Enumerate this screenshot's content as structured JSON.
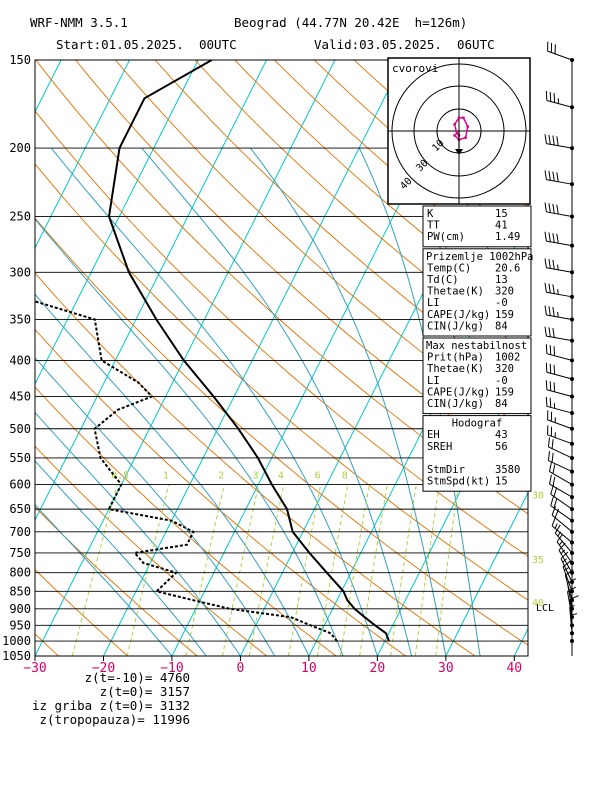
{
  "header": {
    "model": "WRF-NMM 3.5.1",
    "location": "Beograd (44.77N 20.42E  h=126m)",
    "start": "Start:01.05.2025.  00UTC",
    "valid": "Valid:03.05.2025.  06UTC"
  },
  "colors": {
    "axis": "#000000",
    "isotherm": "#00c8c8",
    "dry_adiabat": "#e07000",
    "moist_adiabat": "#33a0c0",
    "mixing_ratio": "#b0d040",
    "xtick": "#d4006a",
    "hodo_trace": "#e0008c"
  },
  "chart_data": {
    "type": "skew-t",
    "xaxis_ticks": [
      -30,
      -20,
      -10,
      0,
      10,
      20,
      30,
      40
    ],
    "xlim": [
      -30,
      42
    ],
    "pressure_ticks": [
      150,
      200,
      250,
      300,
      350,
      400,
      450,
      500,
      550,
      600,
      650,
      700,
      750,
      800,
      850,
      900,
      950,
      1000,
      1050
    ],
    "ylim": [
      1050,
      150
    ],
    "temperature": {
      "p": [
        1000,
        975,
        950,
        925,
        900,
        875,
        850,
        800,
        750,
        700,
        650,
        600,
        550,
        500,
        450,
        400,
        350,
        300,
        250,
        200,
        170,
        150
      ],
      "t": [
        20.6,
        19.6,
        17.4,
        15.3,
        13.2,
        11.5,
        10.3,
        6.5,
        2.5,
        -1.5,
        -4.0,
        -8.0,
        -12.0,
        -17.0,
        -23.0,
        -30.0,
        -37.0,
        -44.5,
        -51.5,
        -55.0,
        -55.0,
        -48.0
      ]
    },
    "dewpoint": {
      "p": [
        1000,
        975,
        950,
        925,
        900,
        875,
        850,
        800,
        775,
        750,
        730,
        700,
        675,
        650,
        600,
        550,
        500,
        470,
        450,
        430,
        400,
        350,
        330,
        300,
        250,
        200,
        170,
        150
      ],
      "td": [
        13.0,
        11.5,
        8.0,
        4.5,
        -5.0,
        -11.0,
        -17.0,
        -15.5,
        -21.0,
        -23.0,
        -16.0,
        -16.0,
        -20.0,
        -30.0,
        -30.0,
        -35.0,
        -38.0,
        -36.0,
        -32.0,
        -35.0,
        -42.0,
        -46.0,
        -56.0,
        -60.0,
        -73.0,
        -83.0,
        -88.0,
        -88.0
      ]
    },
    "isotherm_values": [
      -110,
      -100,
      -90,
      -80,
      -70,
      -60,
      -50,
      -40,
      -30,
      -20,
      -10,
      0,
      10,
      20,
      30,
      40
    ],
    "dry_adiabat_thetas": [
      -30,
      -20,
      -10,
      0,
      10,
      20,
      30,
      40,
      50,
      60,
      70,
      80,
      90,
      100,
      110,
      120,
      130,
      140,
      150,
      160,
      170,
      180
    ],
    "moist_adiabat_start_t": [
      -10,
      -5,
      0,
      5,
      10,
      15,
      20,
      25,
      30,
      35
    ],
    "mixing_ratio_labels": [
      "0.5",
      "1",
      "2",
      "3",
      "4",
      "6",
      "8"
    ],
    "mixing_ratio_values": [
      0.5,
      1,
      2,
      3,
      4,
      6,
      8,
      10,
      12,
      16,
      20,
      24
    ],
    "right_labels": [
      {
        "text": "30",
        "p": 620
      },
      {
        "text": "35",
        "p": 765
      },
      {
        "text": "40",
        "p": 880
      },
      {
        "text": "LCL",
        "p": 895
      }
    ],
    "wind_barbs": {
      "p": [
        150,
        175,
        200,
        225,
        250,
        275,
        300,
        325,
        350,
        375,
        400,
        425,
        450,
        475,
        500,
        525,
        550,
        575,
        600,
        625,
        650,
        675,
        700,
        725,
        750,
        775,
        800,
        825,
        850,
        875,
        900,
        925,
        950,
        975,
        1000
      ],
      "dir": [
        290,
        285,
        280,
        280,
        280,
        280,
        280,
        280,
        280,
        280,
        285,
        285,
        285,
        285,
        290,
        290,
        295,
        295,
        300,
        300,
        305,
        305,
        310,
        310,
        320,
        325,
        330,
        335,
        340,
        345,
        350,
        350,
        355,
        355,
        0
      ],
      "spd": [
        30,
        35,
        40,
        40,
        40,
        40,
        35,
        35,
        35,
        30,
        30,
        30,
        30,
        25,
        25,
        25,
        20,
        20,
        20,
        20,
        20,
        20,
        20,
        15,
        15,
        15,
        15,
        15,
        15,
        10,
        10,
        10,
        10,
        5,
        5
      ]
    },
    "hodograph": {
      "label": "cvorovi",
      "ring_labels": [
        "10",
        "30",
        "40"
      ],
      "u": [
        0,
        -1,
        -2,
        0,
        2,
        4,
        3,
        0,
        -2
      ],
      "v": [
        -2,
        -1,
        3,
        6,
        6,
        2,
        -3,
        -4,
        -2
      ]
    }
  },
  "indices": {
    "block1": [
      {
        "label": "K",
        "value": "15"
      },
      {
        "label": "TT",
        "value": "41"
      },
      {
        "label": "PW(cm)",
        "value": "1.49"
      }
    ],
    "block2_title": "Prizemlje 1002hPa",
    "block2": [
      {
        "label": "Temp(C)",
        "value": "20.6"
      },
      {
        "label": "Td(C)",
        "value": "13"
      },
      {
        "label": "Thetae(K)",
        "value": "320"
      },
      {
        "label": "LI",
        "value": "-0"
      },
      {
        "label": "CAPE(J/kg)",
        "value": "159"
      },
      {
        "label": "CIN(J/kg)",
        "value": "84"
      }
    ],
    "block3_title": "Max nestabilnost",
    "block3": [
      {
        "label": "Prit(hPa)",
        "value": "1002"
      },
      {
        "label": "Thetae(K)",
        "value": "320"
      },
      {
        "label": "LI",
        "value": "-0"
      },
      {
        "label": "CAPE(J/kg)",
        "value": "159"
      },
      {
        "label": "CIN(J/kg)",
        "value": "84"
      }
    ],
    "block4_title": "Hodograf",
    "block4": [
      {
        "label": "EH",
        "value": "43"
      },
      {
        "label": "SREH",
        "value": "56"
      },
      {
        "label": "",
        "value": ""
      },
      {
        "label": "StmDir",
        "value": "3580"
      },
      {
        "label": "StmSpd(kt)",
        "value": "15"
      }
    ]
  },
  "footer": {
    "lines": [
      {
        "label": "z(t=-10)=",
        "value": "4760"
      },
      {
        "label": "z(t=0)=",
        "value": "3157"
      },
      {
        "label": "iz griba z(t=0)=",
        "value": "3132"
      },
      {
        "label": "z(tropopauza)=",
        "value": "11996"
      }
    ]
  }
}
